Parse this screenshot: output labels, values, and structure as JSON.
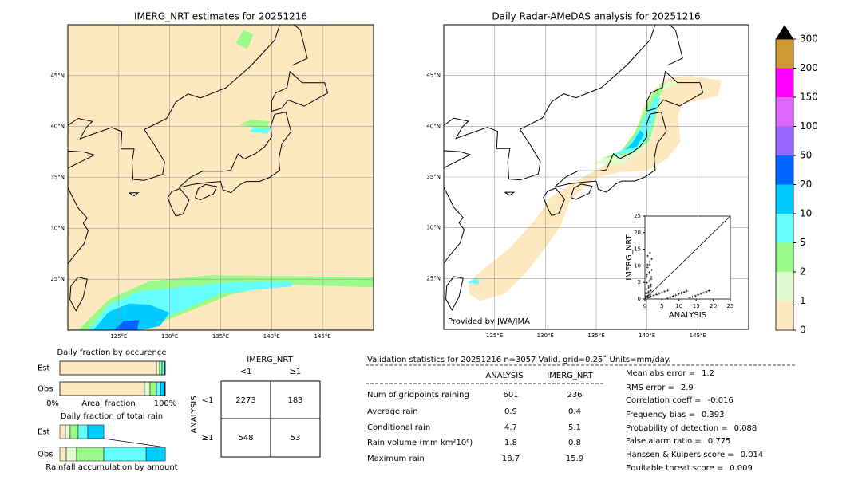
{
  "maps": [
    {
      "title": "IMERG_NRT estimates for 20251216",
      "lonlim": [
        120,
        150
      ],
      "latlim": [
        20,
        50
      ],
      "lonticks": [
        {
          "value": 125,
          "label": "125°E"
        },
        {
          "value": 130,
          "label": "130°E"
        },
        {
          "value": 135,
          "label": "135°E"
        },
        {
          "value": 140,
          "label": "140°E"
        },
        {
          "value": 145,
          "label": "145°E"
        }
      ],
      "latticks": [
        {
          "value": 25,
          "label": "25°N"
        },
        {
          "value": 30,
          "label": "30°N"
        },
        {
          "value": 35,
          "label": "35°N"
        },
        {
          "value": 40,
          "label": "40°N"
        },
        {
          "value": 45,
          "label": "45°N"
        }
      ]
    },
    {
      "title": "Daily Radar-AMeDAS analysis for 20251216",
      "lonlim": [
        120,
        150
      ],
      "latlim": [
        20,
        50
      ],
      "lonticks": [
        {
          "value": 125,
          "label": "125°E"
        },
        {
          "value": 130,
          "label": "130°E"
        },
        {
          "value": 135,
          "label": "135°E"
        },
        {
          "value": 140,
          "label": "140°E"
        },
        {
          "value": 145,
          "label": "145°E"
        }
      ],
      "latticks": [
        {
          "value": 25,
          "label": "25°N"
        },
        {
          "value": 30,
          "label": "30°N"
        },
        {
          "value": 35,
          "label": "35°N"
        },
        {
          "value": 40,
          "label": "40°N"
        },
        {
          "value": 45,
          "label": "45°N"
        }
      ],
      "credit": "Provided by JWA/JMA"
    }
  ],
  "inset": {
    "xlabel": "ANALYSIS",
    "ylabel": "IMERG_NRT",
    "xlim": [
      0,
      25
    ],
    "ylim": [
      0,
      25
    ],
    "xticks": [
      0,
      5,
      10,
      15,
      20,
      25
    ],
    "yticks": [
      0,
      5,
      10,
      15,
      20,
      25
    ]
  },
  "colorbar": {
    "levels": [
      0,
      1,
      2,
      5,
      10,
      20,
      50,
      100,
      150,
      200,
      300
    ],
    "colors": [
      "#fde8c0",
      "#e2fcd2",
      "#99fa8a",
      "#66ffff",
      "#00ccff",
      "#0066ff",
      "#9966ff",
      "#dd66ff",
      "#ff00ff",
      "#cc9933"
    ]
  },
  "occurrence": {
    "title": "Daily fraction by occurence",
    "rows": [
      "Est",
      "Obs"
    ],
    "est": [
      91.7,
      3.0,
      2.3,
      2.3,
      0.7,
      0
    ],
    "obs": [
      80.3,
      5.3,
      6.1,
      3.8,
      3.8,
      0.7
    ],
    "axis_left": "0%",
    "axis_label": "Areal fraction",
    "axis_right": "100%"
  },
  "total_rain": {
    "title": "Daily fraction of total rain",
    "rows": [
      "Est",
      "Obs"
    ],
    "est": [
      5.3,
      4.5,
      7.6,
      9.1,
      15.2,
      0
    ],
    "obs": [
      6.1,
      9.8,
      25.8,
      40.2,
      18.2,
      0
    ],
    "footer": "Rainfall accumulation by amount"
  },
  "contingency": {
    "col_title": "IMERG_NRT",
    "row_title": "ANALYSIS",
    "cols": [
      "<1",
      "≥1"
    ],
    "rows": [
      "<1",
      "≥1"
    ],
    "cells": [
      [
        2273,
        183
      ],
      [
        548,
        53
      ]
    ]
  },
  "stats": {
    "title": "Validation statistics for 20251216  n=3057 Valid. grid=0.25˚ Units=mm/day.",
    "headers": [
      "ANALYSIS",
      "IMERG_NRT"
    ],
    "rows": [
      {
        "label": "Num of gridpoints raining",
        "analysis": 601,
        "imerg": 236
      },
      {
        "label": "Average rain",
        "analysis": 0.9,
        "imerg": 0.4
      },
      {
        "label": "Conditional rain",
        "analysis": 4.7,
        "imerg": 5.1
      },
      {
        "label": "Rain volume (mm km²10⁶)",
        "analysis": 1.8,
        "imerg": 0.8
      },
      {
        "label": "Maximum rain",
        "analysis": 18.7,
        "imerg": 15.9
      }
    ],
    "scores": [
      {
        "label": "Mean abs error =",
        "value": 1.2
      },
      {
        "label": "RMS error =",
        "value": 2.9
      },
      {
        "label": "Correlation coeff =",
        "value": -0.016
      },
      {
        "label": "Frequency bias =",
        "value": 0.393
      },
      {
        "label": "Probability of detection =",
        "value": 0.088
      },
      {
        "label": "False alarm ratio =",
        "value": 0.775
      },
      {
        "label": "Hanssen & Kuipers score =",
        "value": 0.014
      },
      {
        "label": "Equitable threat score =",
        "value": 0.009
      }
    ]
  }
}
